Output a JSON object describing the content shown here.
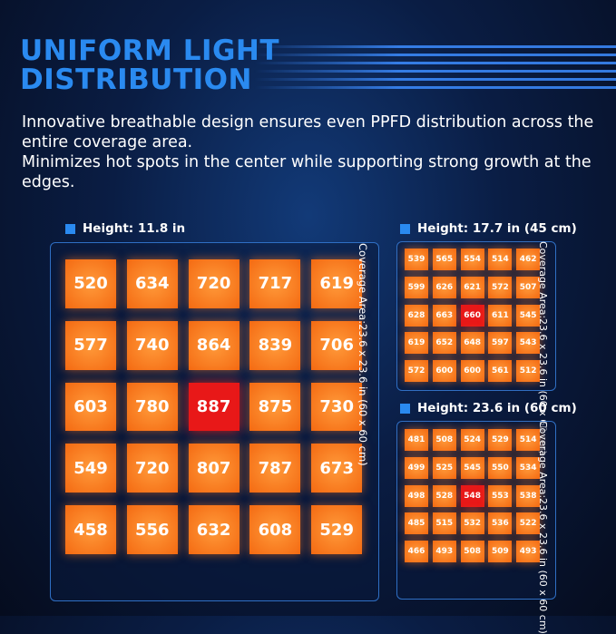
{
  "header": {
    "title_lines": [
      "UNIFORM LIGHT",
      "DISTRIBUTION"
    ]
  },
  "description": [
    "Innovative breathable design ensures even PPFD distribution across the entire coverage area.",
    "Minimizes hot spots in the center while supporting strong growth at the edges."
  ],
  "panels": [
    {
      "label": "Height: 11.8 in",
      "coverage": [
        "Coverage Area:",
        "23.6 x 23.6 in (60 x 60 cm)"
      ],
      "rows": [
        [
          520,
          634,
          720,
          717,
          619
        ],
        [
          577,
          740,
          864,
          839,
          706
        ],
        [
          603,
          780,
          887,
          875,
          730
        ],
        [
          549,
          720,
          807,
          787,
          673
        ],
        [
          458,
          556,
          632,
          608,
          529
        ]
      ]
    },
    {
      "label": "Height: 17.7 in (45 cm)",
      "coverage": [
        "Coverage Area:",
        "23.6 x 23.6 in (60 x 60 cm)"
      ],
      "rows": [
        [
          539,
          565,
          554,
          514,
          462
        ],
        [
          599,
          626,
          621,
          572,
          507
        ],
        [
          628,
          663,
          660,
          611,
          545
        ],
        [
          619,
          652,
          648,
          597,
          543
        ],
        [
          572,
          600,
          600,
          561,
          512
        ]
      ]
    },
    {
      "label": "Height: 23.6 in (60 cm)",
      "coverage": [
        "Coverage Area:",
        "23.6 x 23.6 in (60 x 60 cm)"
      ],
      "rows": [
        [
          481,
          508,
          524,
          529,
          514
        ],
        [
          499,
          525,
          545,
          550,
          534
        ],
        [
          498,
          528,
          548,
          553,
          538
        ],
        [
          485,
          515,
          532,
          536,
          522
        ],
        [
          466,
          493,
          508,
          509,
          493
        ]
      ]
    }
  ]
}
